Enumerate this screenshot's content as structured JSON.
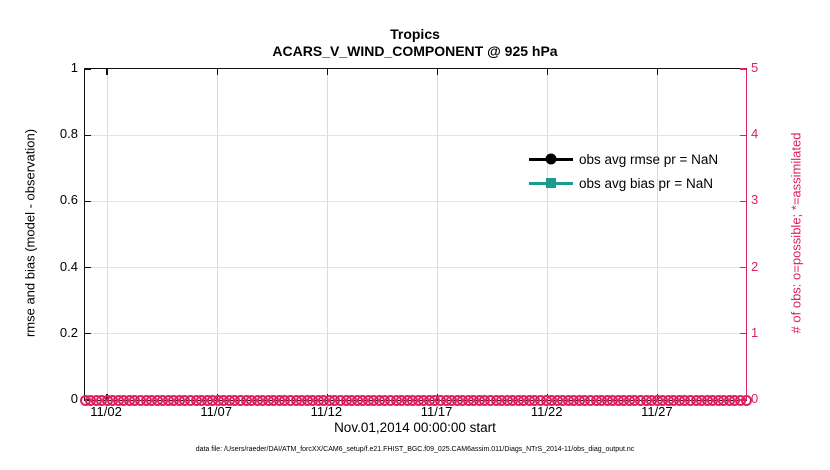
{
  "title": {
    "line1": "Tropics",
    "line2": "ACARS_V_WIND_COMPONENT @ 925 hPa"
  },
  "axes": {
    "left": {
      "label": "rmse and bias (model - observation)",
      "tick_labels": [
        "0",
        "0.2",
        "0.4",
        "0.6",
        "0.8",
        "1"
      ],
      "tick_values": [
        0,
        0.2,
        0.4,
        0.6,
        0.8,
        1
      ],
      "range": [
        0,
        1
      ],
      "color": "#000000"
    },
    "right": {
      "label": "# of obs: o=possible; *=assimilated",
      "tick_labels": [
        "0",
        "1",
        "2",
        "3",
        "4",
        "5"
      ],
      "tick_values": [
        0,
        1,
        2,
        3,
        4,
        5
      ],
      "range": [
        0,
        5
      ],
      "color": "#dd2064"
    },
    "bottom": {
      "label": "Nov.01,2014 00:00:00 start",
      "tick_labels": [
        "11/02",
        "11/07",
        "11/12",
        "11/17",
        "11/22",
        "11/27"
      ],
      "tick_days": [
        1,
        6,
        11,
        16,
        21,
        26
      ],
      "total_days": 30
    }
  },
  "legend": [
    {
      "label": "obs avg rmse pr = NaN",
      "color": "#000000",
      "marker": "circle"
    },
    {
      "label": "obs avg bias pr = NaN",
      "color": "#1a9b8c",
      "marker": "square"
    }
  ],
  "caption": "data file: /Users/raeder/DAI/ATM_forcXX/CAM6_setup/f.e21.FHIST_BGC.f09_025.CAM6assim.011/Diags_NTrS_2014-11/obs_diag_output.nc",
  "colors": {
    "accent_pink": "#dd2064",
    "grid_pink": "#f6d9e4",
    "grid_gray": "#dbdbdb",
    "teal": "#1a9b8c",
    "black": "#000000"
  },
  "chart_data": {
    "type": "line",
    "title": "Tropics",
    "subtitle": "ACARS_V_WIND_COMPONENT @ 925 hPa",
    "xlabel": "Nov.01,2014 00:00:00 start",
    "x_axis": {
      "tick_labels": [
        "11/02",
        "11/07",
        "11/12",
        "11/17",
        "11/22",
        "11/27"
      ],
      "tick_days": [
        1,
        6,
        11,
        16,
        21,
        26
      ],
      "total_days": 30
    },
    "y_left": {
      "label": "rmse and bias (model - observation)",
      "lim": [
        0,
        1
      ],
      "ticks": [
        0,
        0.2,
        0.4,
        0.6,
        0.8,
        1
      ]
    },
    "y_right": {
      "label": "# of obs: o=possible; *=assimilated",
      "lim": [
        0,
        5
      ],
      "ticks": [
        0,
        1,
        2,
        3,
        4,
        5
      ]
    },
    "grid": true,
    "legend_position": "upper-right-inside-no-box",
    "series": [
      {
        "name": "obs avg rmse pr = NaN",
        "axis": "left",
        "marker": "circle",
        "color": "#000000",
        "values": "NaN",
        "plotted_points": 0
      },
      {
        "name": "obs avg bias pr = NaN",
        "axis": "left",
        "marker": "square",
        "color": "#1a9b8c",
        "values": "NaN",
        "plotted_points": 0
      },
      {
        "name": "# of obs possible (o)",
        "axis": "right",
        "marker": "open-circle",
        "color": "#dd2064",
        "constant_value": 0,
        "n_points": 120,
        "note": "dense row of overlapping open circles along y=0 spanning full x range"
      },
      {
        "name": "# of obs assimilated (*)",
        "axis": "right",
        "marker": "asterisk",
        "color": "#dd2064",
        "constant_value": 0,
        "n_points": 120,
        "note": "hidden under the possible-obs circles at y=0"
      }
    ]
  }
}
